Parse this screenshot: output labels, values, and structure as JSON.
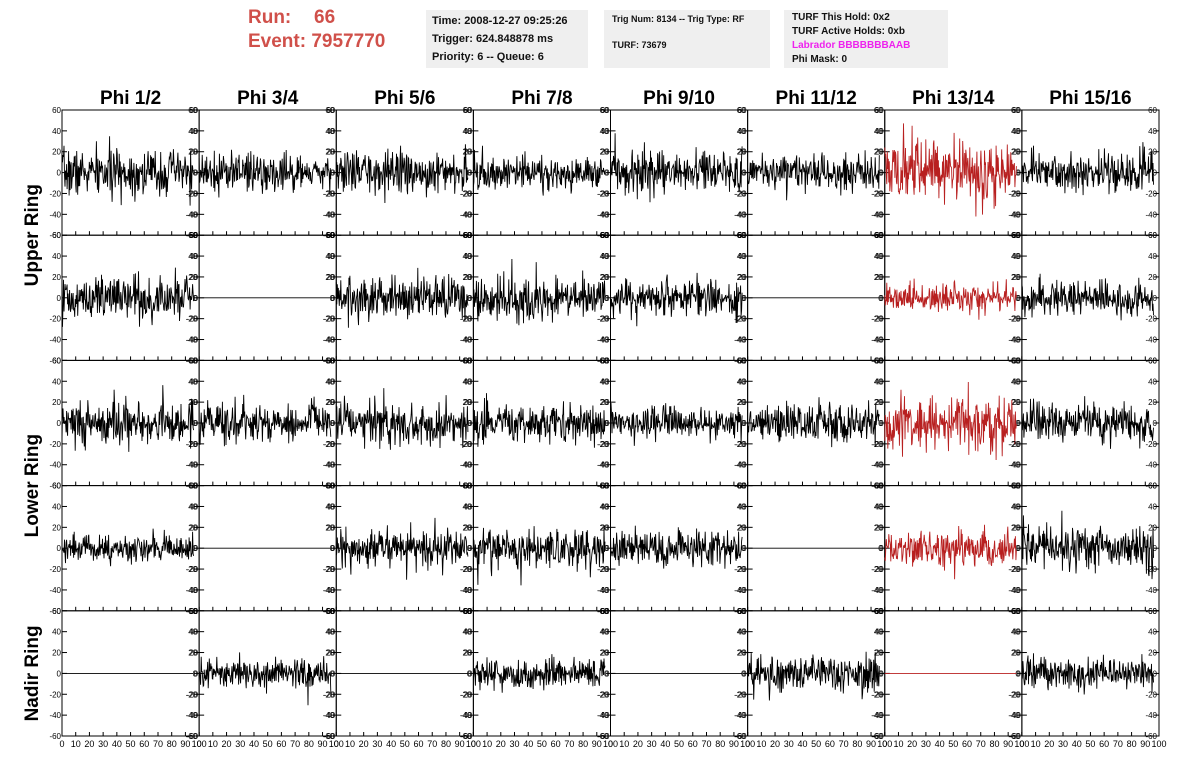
{
  "header": {
    "run_label": "Run:",
    "run_value": "66",
    "event_label": "Event:",
    "event_value": "7957770",
    "time": "Time: 2008-12-27 09:25:26",
    "trigger": "Trigger: 624.848878 ms",
    "priority": "Priority: 6 -- Queue: 6",
    "trig_num": "Trig Num: 8134 -- Trig Type: RF",
    "turf_id": "TURF: 73679",
    "turf_this_hold": "TURF This Hold: 0x2",
    "turf_active_holds": "TURF Active Holds: 0xb",
    "labrador": "Labrador BBBBBBBAAB",
    "phi_mask": "Phi Mask: 0"
  },
  "colors": {
    "header_red": "#d0504a",
    "labrador_magenta": "#ee22ee",
    "trace_black": "#000000",
    "trace_red": "#b82020",
    "info_bg": "#efefef"
  },
  "chart_data": {
    "type": "line",
    "columns": [
      "Phi 1/2",
      "Phi 3/4",
      "Phi 5/6",
      "Phi 7/8",
      "Phi 9/10",
      "Phi 11/12",
      "Phi 13/14",
      "Phi 15/16"
    ],
    "ring_labels": [
      "Upper Ring",
      "Lower Ring",
      "Nadir Ring"
    ],
    "rows_per_ring": [
      2,
      2,
      1
    ],
    "xlim": [
      0,
      100
    ],
    "ylim": [
      -60,
      60
    ],
    "xticks": [
      "0",
      "10",
      "20",
      "30",
      "40",
      "50",
      "60",
      "70",
      "80",
      "90",
      "100"
    ],
    "yticks": [
      "60",
      "40",
      "20",
      "0",
      "-20",
      "-40",
      "-60"
    ],
    "trace_x_range": [
      0,
      96
    ],
    "highlight_column": "Phi 13/14",
    "grid": false,
    "panels": [
      [
        "noise18",
        "noise16",
        "noise16",
        "noise14",
        "noise16",
        "noise13",
        "noise24",
        "noise16"
      ],
      [
        "noise17",
        "flat",
        "noise17",
        "noise17",
        "noise14",
        "flat",
        "noise11",
        "noise14"
      ],
      [
        "noise18",
        "noise16",
        "noise17",
        "noise15",
        "noise13",
        "noise16",
        "noise22",
        "noise15"
      ],
      [
        "noise11",
        "flat",
        "noise15",
        "noise18",
        "noise14",
        "flat",
        "noise14",
        "noise18"
      ],
      [
        "flat",
        "noise11",
        "flat",
        "noise12",
        "flat",
        "noise14",
        "flat",
        "noise12"
      ]
    ]
  }
}
